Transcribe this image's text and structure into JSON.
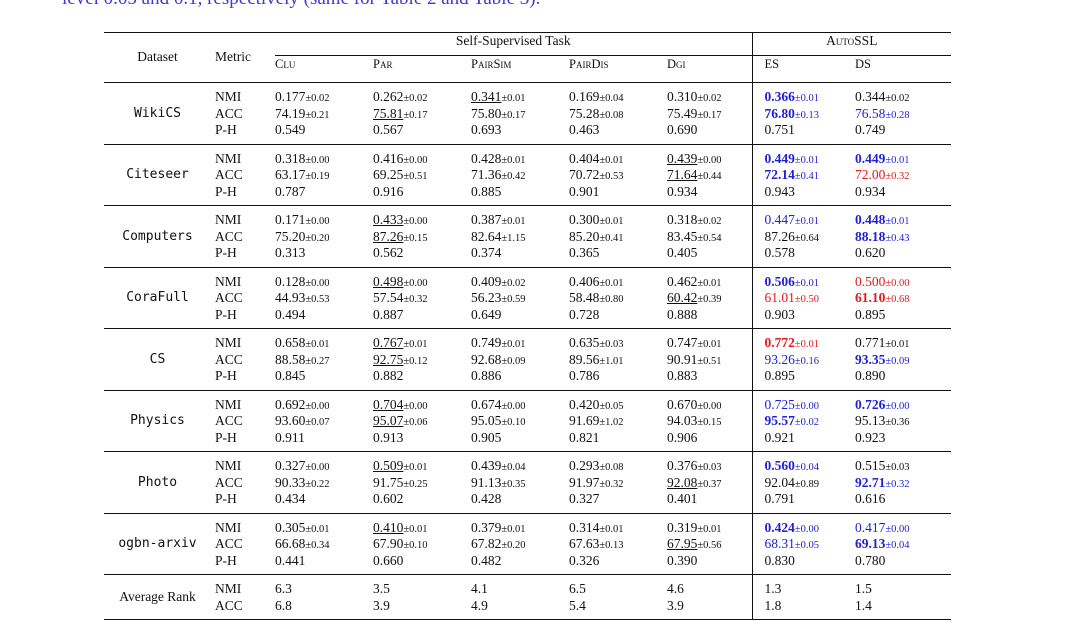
{
  "top_text": "level 0.05 and 0.1, respectively (same for Table 2 and Table 3).",
  "headers": {
    "dataset": "Dataset",
    "metric": "Metric",
    "self_supervised": "Self-Supervised Task",
    "autossl": "AutoSSL",
    "columns": [
      "Clu",
      "Par",
      "PairSim",
      "PairDis",
      "Dgi",
      "ES",
      "DS"
    ]
  },
  "colors": {
    "best": "#1f1fd6",
    "worse": "#e01b1b",
    "caption": "#3b3bd0"
  },
  "rows": [
    {
      "dataset": "WikiCS",
      "metrics": [
        {
          "name": "NMI",
          "cells": [
            {
              "v": "0.177",
              "s": "±0.02"
            },
            {
              "v": "0.262",
              "s": "±0.02"
            },
            {
              "v": "0.341",
              "s": "±0.01",
              "u": true
            },
            {
              "v": "0.169",
              "s": "±0.04"
            },
            {
              "v": "0.310",
              "s": "±0.02"
            },
            {
              "v": "0.366",
              "s": "±0.01",
              "c": "blue",
              "b": true
            },
            {
              "v": "0.344",
              "s": "±0.02"
            }
          ]
        },
        {
          "name": "ACC",
          "cells": [
            {
              "v": "74.19",
              "s": "±0.21"
            },
            {
              "v": "75.81",
              "s": "±0.17",
              "u": true
            },
            {
              "v": "75.80",
              "s": "±0.17"
            },
            {
              "v": "75.28",
              "s": "±0.08"
            },
            {
              "v": "75.49",
              "s": "±0.17"
            },
            {
              "v": "76.80",
              "s": "±0.13",
              "c": "blue",
              "b": true
            },
            {
              "v": "76.58",
              "s": "±0.28",
              "c": "blue"
            }
          ]
        },
        {
          "name": "P-H",
          "cells": [
            {
              "v": "0.549"
            },
            {
              "v": "0.567"
            },
            {
              "v": "0.693"
            },
            {
              "v": "0.463"
            },
            {
              "v": "0.690"
            },
            {
              "v": "0.751"
            },
            {
              "v": "0.749"
            }
          ]
        }
      ]
    },
    {
      "dataset": "Citeseer",
      "metrics": [
        {
          "name": "NMI",
          "cells": [
            {
              "v": "0.318",
              "s": "±0.00"
            },
            {
              "v": "0.416",
              "s": "±0.00"
            },
            {
              "v": "0.428",
              "s": "±0.01"
            },
            {
              "v": "0.404",
              "s": "±0.01"
            },
            {
              "v": "0.439",
              "s": "±0.00",
              "u": true
            },
            {
              "v": "0.449",
              "s": "±0.01",
              "c": "blue",
              "b": true
            },
            {
              "v": "0.449",
              "s": "±0.01",
              "c": "blue",
              "b": true
            }
          ]
        },
        {
          "name": "ACC",
          "cells": [
            {
              "v": "63.17",
              "s": "±0.19"
            },
            {
              "v": "69.25",
              "s": "±0.51"
            },
            {
              "v": "71.36",
              "s": "±0.42"
            },
            {
              "v": "70.72",
              "s": "±0.53"
            },
            {
              "v": "71.64",
              "s": "±0.44",
              "u": true
            },
            {
              "v": "72.14",
              "s": "±0.41",
              "c": "blue",
              "b": true
            },
            {
              "v": "72.00",
              "s": "±0.32",
              "c": "red"
            }
          ]
        },
        {
          "name": "P-H",
          "cells": [
            {
              "v": "0.787"
            },
            {
              "v": "0.916"
            },
            {
              "v": "0.885"
            },
            {
              "v": "0.901"
            },
            {
              "v": "0.934"
            },
            {
              "v": "0.943"
            },
            {
              "v": "0.934"
            }
          ]
        }
      ]
    },
    {
      "dataset": "Computers",
      "metrics": [
        {
          "name": "NMI",
          "cells": [
            {
              "v": "0.171",
              "s": "±0.00"
            },
            {
              "v": "0.433",
              "s": "±0.00",
              "u": true
            },
            {
              "v": "0.387",
              "s": "±0.01"
            },
            {
              "v": "0.300",
              "s": "±0.01"
            },
            {
              "v": "0.318",
              "s": "±0.02"
            },
            {
              "v": "0.447",
              "s": "±0.01",
              "c": "blue"
            },
            {
              "v": "0.448",
              "s": "±0.01",
              "c": "blue",
              "b": true
            }
          ]
        },
        {
          "name": "ACC",
          "cells": [
            {
              "v": "75.20",
              "s": "±0.20"
            },
            {
              "v": "87.26",
              "s": "±0.15",
              "u": true
            },
            {
              "v": "82.64",
              "s": "±1.15"
            },
            {
              "v": "85.20",
              "s": "±0.41"
            },
            {
              "v": "83.45",
              "s": "±0.54"
            },
            {
              "v": "87.26",
              "s": "±0.64"
            },
            {
              "v": "88.18",
              "s": "±0.43",
              "c": "blue",
              "b": true
            }
          ]
        },
        {
          "name": "P-H",
          "cells": [
            {
              "v": "0.313"
            },
            {
              "v": "0.562"
            },
            {
              "v": "0.374"
            },
            {
              "v": "0.365"
            },
            {
              "v": "0.405"
            },
            {
              "v": "0.578"
            },
            {
              "v": "0.620"
            }
          ]
        }
      ]
    },
    {
      "dataset": "CoraFull",
      "metrics": [
        {
          "name": "NMI",
          "cells": [
            {
              "v": "0.128",
              "s": "±0.00"
            },
            {
              "v": "0.498",
              "s": "±0.00",
              "u": true
            },
            {
              "v": "0.409",
              "s": "±0.02"
            },
            {
              "v": "0.406",
              "s": "±0.01"
            },
            {
              "v": "0.462",
              "s": "±0.01"
            },
            {
              "v": "0.506",
              "s": "±0.01",
              "c": "blue",
              "b": true
            },
            {
              "v": "0.500",
              "s": "±0.00",
              "c": "red"
            }
          ]
        },
        {
          "name": "ACC",
          "cells": [
            {
              "v": "44.93",
              "s": "±0.53"
            },
            {
              "v": "57.54",
              "s": "±0.32"
            },
            {
              "v": "56.23",
              "s": "±0.59"
            },
            {
              "v": "58.48",
              "s": "±0.80"
            },
            {
              "v": "60.42",
              "s": "±0.39",
              "u": true
            },
            {
              "v": "61.01",
              "s": "±0.50",
              "c": "red"
            },
            {
              "v": "61.10",
              "s": "±0.68",
              "c": "red",
              "b": true
            }
          ]
        },
        {
          "name": "P-H",
          "cells": [
            {
              "v": "0.494"
            },
            {
              "v": "0.887"
            },
            {
              "v": "0.649"
            },
            {
              "v": "0.728"
            },
            {
              "v": "0.888"
            },
            {
              "v": "0.903"
            },
            {
              "v": "0.895"
            }
          ]
        }
      ]
    },
    {
      "dataset": "CS",
      "metrics": [
        {
          "name": "NMI",
          "cells": [
            {
              "v": "0.658",
              "s": "±0.01"
            },
            {
              "v": "0.767",
              "s": "±0.01",
              "u": true
            },
            {
              "v": "0.749",
              "s": "±0.01"
            },
            {
              "v": "0.635",
              "s": "±0.03"
            },
            {
              "v": "0.747",
              "s": "±0.01"
            },
            {
              "v": "0.772",
              "s": "±0.01",
              "c": "red",
              "b": true
            },
            {
              "v": "0.771",
              "s": "±0.01"
            }
          ]
        },
        {
          "name": "ACC",
          "cells": [
            {
              "v": "88.58",
              "s": "±0.27"
            },
            {
              "v": "92.75",
              "s": "±0.12",
              "u": true
            },
            {
              "v": "92.68",
              "s": "±0.09"
            },
            {
              "v": "89.56",
              "s": "±1.01"
            },
            {
              "v": "90.91",
              "s": "±0.51"
            },
            {
              "v": "93.26",
              "s": "±0.16",
              "c": "blue"
            },
            {
              "v": "93.35",
              "s": "±0.09",
              "c": "blue",
              "b": true
            }
          ]
        },
        {
          "name": "P-H",
          "cells": [
            {
              "v": "0.845"
            },
            {
              "v": "0.882"
            },
            {
              "v": "0.886"
            },
            {
              "v": "0.786"
            },
            {
              "v": "0.883"
            },
            {
              "v": "0.895"
            },
            {
              "v": "0.890"
            }
          ]
        }
      ]
    },
    {
      "dataset": "Physics",
      "metrics": [
        {
          "name": "NMI",
          "cells": [
            {
              "v": "0.692",
              "s": "±0.00"
            },
            {
              "v": "0.704",
              "s": "±0.00",
              "u": true
            },
            {
              "v": "0.674",
              "s": "±0.00"
            },
            {
              "v": "0.420",
              "s": "±0.05"
            },
            {
              "v": "0.670",
              "s": "±0.00"
            },
            {
              "v": "0.725",
              "s": "±0.00",
              "c": "blue"
            },
            {
              "v": "0.726",
              "s": "±0.00",
              "c": "blue",
              "b": true
            }
          ]
        },
        {
          "name": "ACC",
          "cells": [
            {
              "v": "93.60",
              "s": "±0.07"
            },
            {
              "v": "95.07",
              "s": "±0.06",
              "u": true
            },
            {
              "v": "95.05",
              "s": "±0.10"
            },
            {
              "v": "91.69",
              "s": "±1.02"
            },
            {
              "v": "94.03",
              "s": "±0.15"
            },
            {
              "v": "95.57",
              "s": "±0.02",
              "c": "blue",
              "b": true
            },
            {
              "v": "95.13",
              "s": "±0.36"
            }
          ]
        },
        {
          "name": "P-H",
          "cells": [
            {
              "v": "0.911"
            },
            {
              "v": "0.913"
            },
            {
              "v": "0.905"
            },
            {
              "v": "0.821"
            },
            {
              "v": "0.906"
            },
            {
              "v": "0.921"
            },
            {
              "v": "0.923"
            }
          ]
        }
      ]
    },
    {
      "dataset": "Photo",
      "metrics": [
        {
          "name": "NMI",
          "cells": [
            {
              "v": "0.327",
              "s": "±0.00"
            },
            {
              "v": "0.509",
              "s": "±0.01",
              "u": true
            },
            {
              "v": "0.439",
              "s": "±0.04"
            },
            {
              "v": "0.293",
              "s": "±0.08"
            },
            {
              "v": "0.376",
              "s": "±0.03"
            },
            {
              "v": "0.560",
              "s": "±0.04",
              "c": "blue",
              "b": true
            },
            {
              "v": "0.515",
              "s": "±0.03"
            }
          ]
        },
        {
          "name": "ACC",
          "cells": [
            {
              "v": "90.33",
              "s": "±0.22"
            },
            {
              "v": "91.75",
              "s": "±0.25"
            },
            {
              "v": "91.13",
              "s": "±0.35"
            },
            {
              "v": "91.97",
              "s": "±0.32"
            },
            {
              "v": "92.08",
              "s": "±0.37",
              "u": true
            },
            {
              "v": "92.04",
              "s": "±0.89"
            },
            {
              "v": "92.71",
              "s": "±0.32",
              "c": "blue",
              "b": true
            }
          ]
        },
        {
          "name": "P-H",
          "cells": [
            {
              "v": "0.434"
            },
            {
              "v": "0.602"
            },
            {
              "v": "0.428"
            },
            {
              "v": "0.327"
            },
            {
              "v": "0.401"
            },
            {
              "v": "0.791"
            },
            {
              "v": "0.616"
            }
          ]
        }
      ]
    },
    {
      "dataset": "ogbn-arxiv",
      "metrics": [
        {
          "name": "NMI",
          "cells": [
            {
              "v": "0.305",
              "s": "±0.01"
            },
            {
              "v": "0.410",
              "s": "±0.01",
              "u": true
            },
            {
              "v": "0.379",
              "s": "±0.01"
            },
            {
              "v": "0.314",
              "s": "±0.01"
            },
            {
              "v": "0.319",
              "s": "±0.01"
            },
            {
              "v": "0.424",
              "s": "±0.00",
              "c": "blue",
              "b": true
            },
            {
              "v": "0.417",
              "s": "±0.00",
              "c": "blue"
            }
          ]
        },
        {
          "name": "ACC",
          "cells": [
            {
              "v": "66.68",
              "s": "±0.34"
            },
            {
              "v": "67.90",
              "s": "±0.10"
            },
            {
              "v": "67.82",
              "s": "±0.20"
            },
            {
              "v": "67.63",
              "s": "±0.13"
            },
            {
              "v": "67.95",
              "s": "±0.56",
              "u": true
            },
            {
              "v": "68.31",
              "s": "±0.05",
              "c": "blue"
            },
            {
              "v": "69.13",
              "s": "±0.04",
              "c": "blue",
              "b": true
            }
          ]
        },
        {
          "name": "P-H",
          "cells": [
            {
              "v": "0.441"
            },
            {
              "v": "0.660"
            },
            {
              "v": "0.482"
            },
            {
              "v": "0.326"
            },
            {
              "v": "0.390"
            },
            {
              "v": "0.830"
            },
            {
              "v": "0.780"
            }
          ]
        }
      ]
    }
  ],
  "average_rank": {
    "label": "Average Rank",
    "metrics": [
      {
        "name": "NMI",
        "cells": [
          {
            "v": "6.3"
          },
          {
            "v": "3.5"
          },
          {
            "v": "4.1"
          },
          {
            "v": "6.5"
          },
          {
            "v": "4.6"
          },
          {
            "v": "1.3"
          },
          {
            "v": "1.5"
          }
        ]
      },
      {
        "name": "ACC",
        "cells": [
          {
            "v": "6.8"
          },
          {
            "v": "3.9"
          },
          {
            "v": "4.9"
          },
          {
            "v": "5.4"
          },
          {
            "v": "3.9"
          },
          {
            "v": "1.8"
          },
          {
            "v": "1.4"
          }
        ]
      }
    ]
  }
}
